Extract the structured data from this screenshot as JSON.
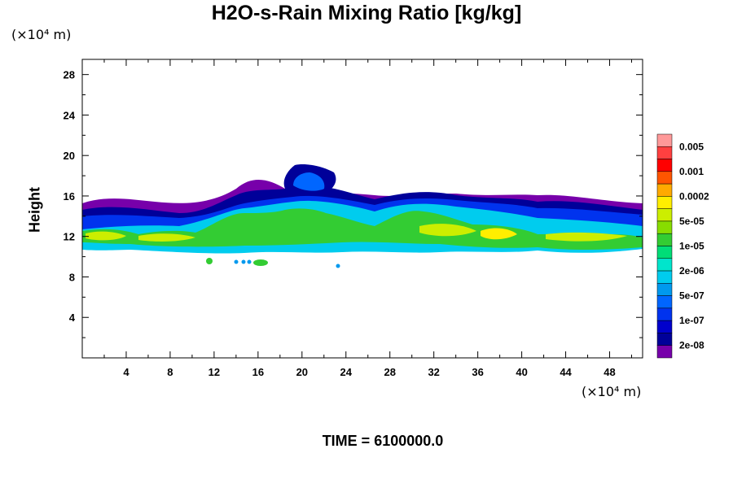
{
  "chart_data": {
    "type": "heatmap",
    "title": "H2O-s-Rain Mixing Ratio [kg/kg]",
    "ylabel": "Height",
    "x_unit": "(×10⁴ m)",
    "y_unit": "(×10⁴ m)",
    "time_label": "TIME = 6100000.0",
    "xlim": [
      0,
      51
    ],
    "ylim": [
      0,
      29.5
    ],
    "x_ticks": [
      4,
      8,
      12,
      16,
      20,
      24,
      28,
      32,
      36,
      40,
      44,
      48
    ],
    "y_ticks": [
      4,
      8,
      12,
      16,
      20,
      24,
      28
    ],
    "grid": false,
    "colorbar": {
      "placement": "right",
      "labels": [
        "0.005",
        "0.001",
        "0.0002",
        "5e-05",
        "1e-05",
        "2e-06",
        "5e-07",
        "1e-07",
        "2e-08"
      ],
      "colors": [
        "#ff9999",
        "#ff4040",
        "#ff0000",
        "#ff5500",
        "#ffaa00",
        "#ffee00",
        "#ccee00",
        "#88dd00",
        "#33cc33",
        "#00dd77",
        "#00e5cc",
        "#00ccee",
        "#0099ee",
        "#0066ff",
        "#0033ee",
        "#0000cc",
        "#000099",
        "#7700aa"
      ]
    },
    "field_regions": [
      {
        "level": "2e-08",
        "x": [
          0,
          51
        ],
        "y": [
          11,
          16.5
        ]
      },
      {
        "level": "1e-07",
        "x": [
          0,
          51
        ],
        "y": [
          11,
          15.5
        ]
      },
      {
        "level": "5e-07",
        "x": [
          0,
          51
        ],
        "y": [
          11,
          15
        ]
      },
      {
        "level": "1e-05",
        "x": [
          0,
          51
        ],
        "y": [
          11.2,
          13.5
        ]
      },
      {
        "level": "5e-05",
        "x": [
          36,
          40
        ],
        "y": [
          11.5,
          13
        ]
      },
      {
        "level": "2e-08",
        "x": [
          16.5,
          23.5
        ],
        "y": [
          15.5,
          19.2
        ]
      },
      {
        "level": "5e-07",
        "x": [
          16,
          23
        ],
        "y": [
          8.8,
          9.8
        ]
      }
    ]
  }
}
